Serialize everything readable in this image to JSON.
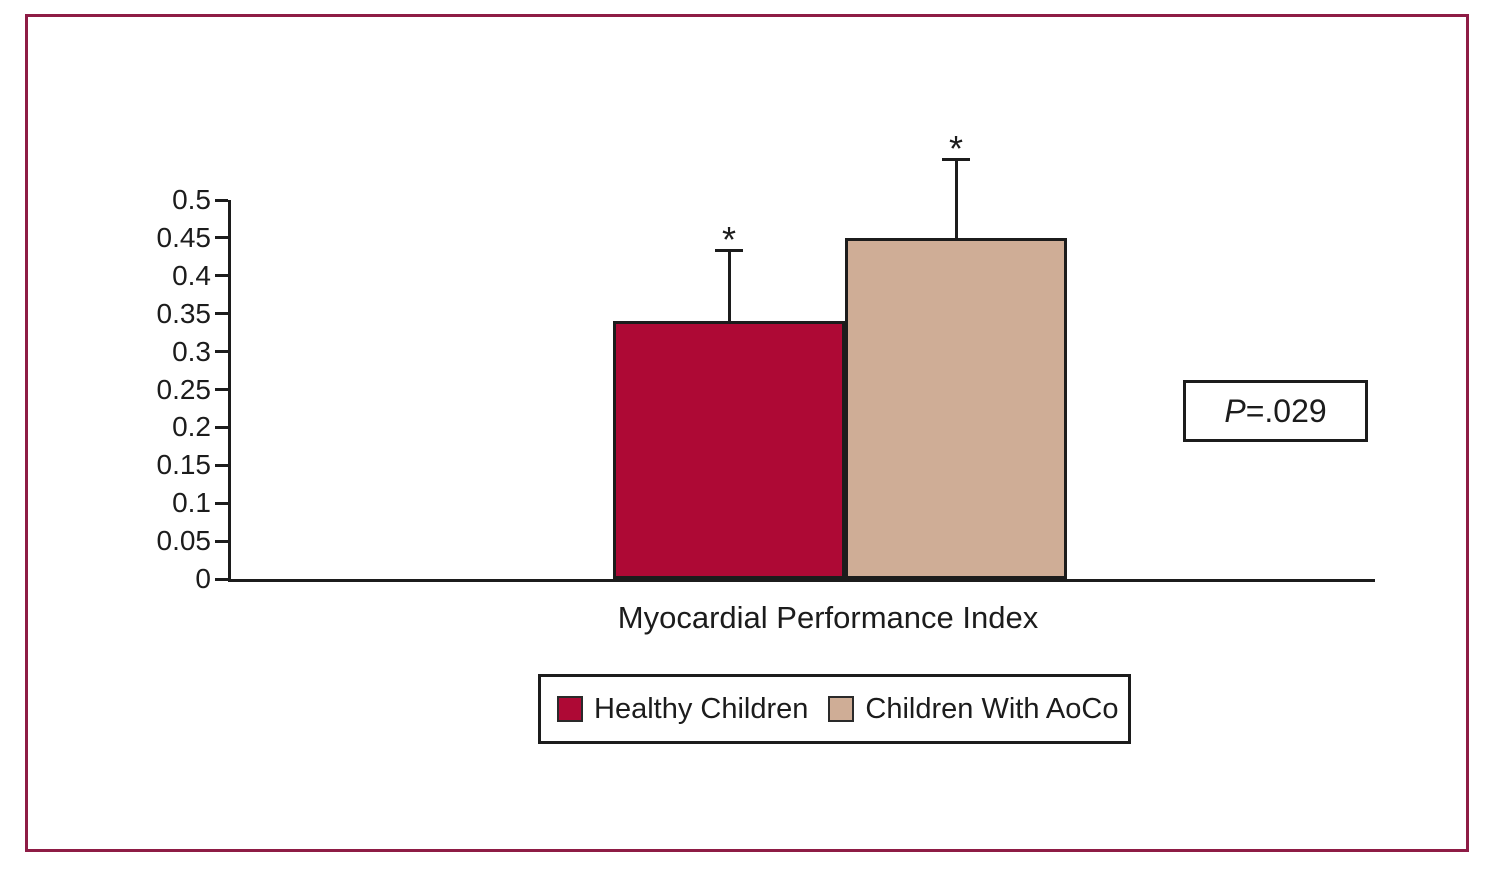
{
  "figure": {
    "border_color": "#8E1C45",
    "background": "#ffffff",
    "axis_color": "#1c1c1c"
  },
  "chart_data": {
    "type": "bar",
    "title": "",
    "xlabel": "Myocardial Performance Index",
    "ylabel": "",
    "ylim": [
      0,
      0.5
    ],
    "yticks": [
      0,
      0.05,
      0.1,
      0.15,
      0.2,
      0.25,
      0.3,
      0.35,
      0.4,
      0.45,
      0.5
    ],
    "ytick_labels": [
      "0",
      "0.05",
      "0.1",
      "0.15",
      "0.2",
      "0.25",
      "0.3",
      "0.35",
      "0.4",
      "0.45",
      "0.5"
    ],
    "grid": false,
    "legend_position": "bottom-center",
    "series": [
      {
        "name": "Healthy Children",
        "value": 0.34,
        "error_top": 0.435,
        "significance": "*",
        "color": "#AE0935"
      },
      {
        "name": "Children With AoCo",
        "value": 0.45,
        "error_top": 0.555,
        "significance": "*",
        "color": "#CFAD96"
      }
    ],
    "annotation": {
      "text": "P=.029",
      "p_italic": "P",
      "p_rest": "=.029"
    }
  }
}
